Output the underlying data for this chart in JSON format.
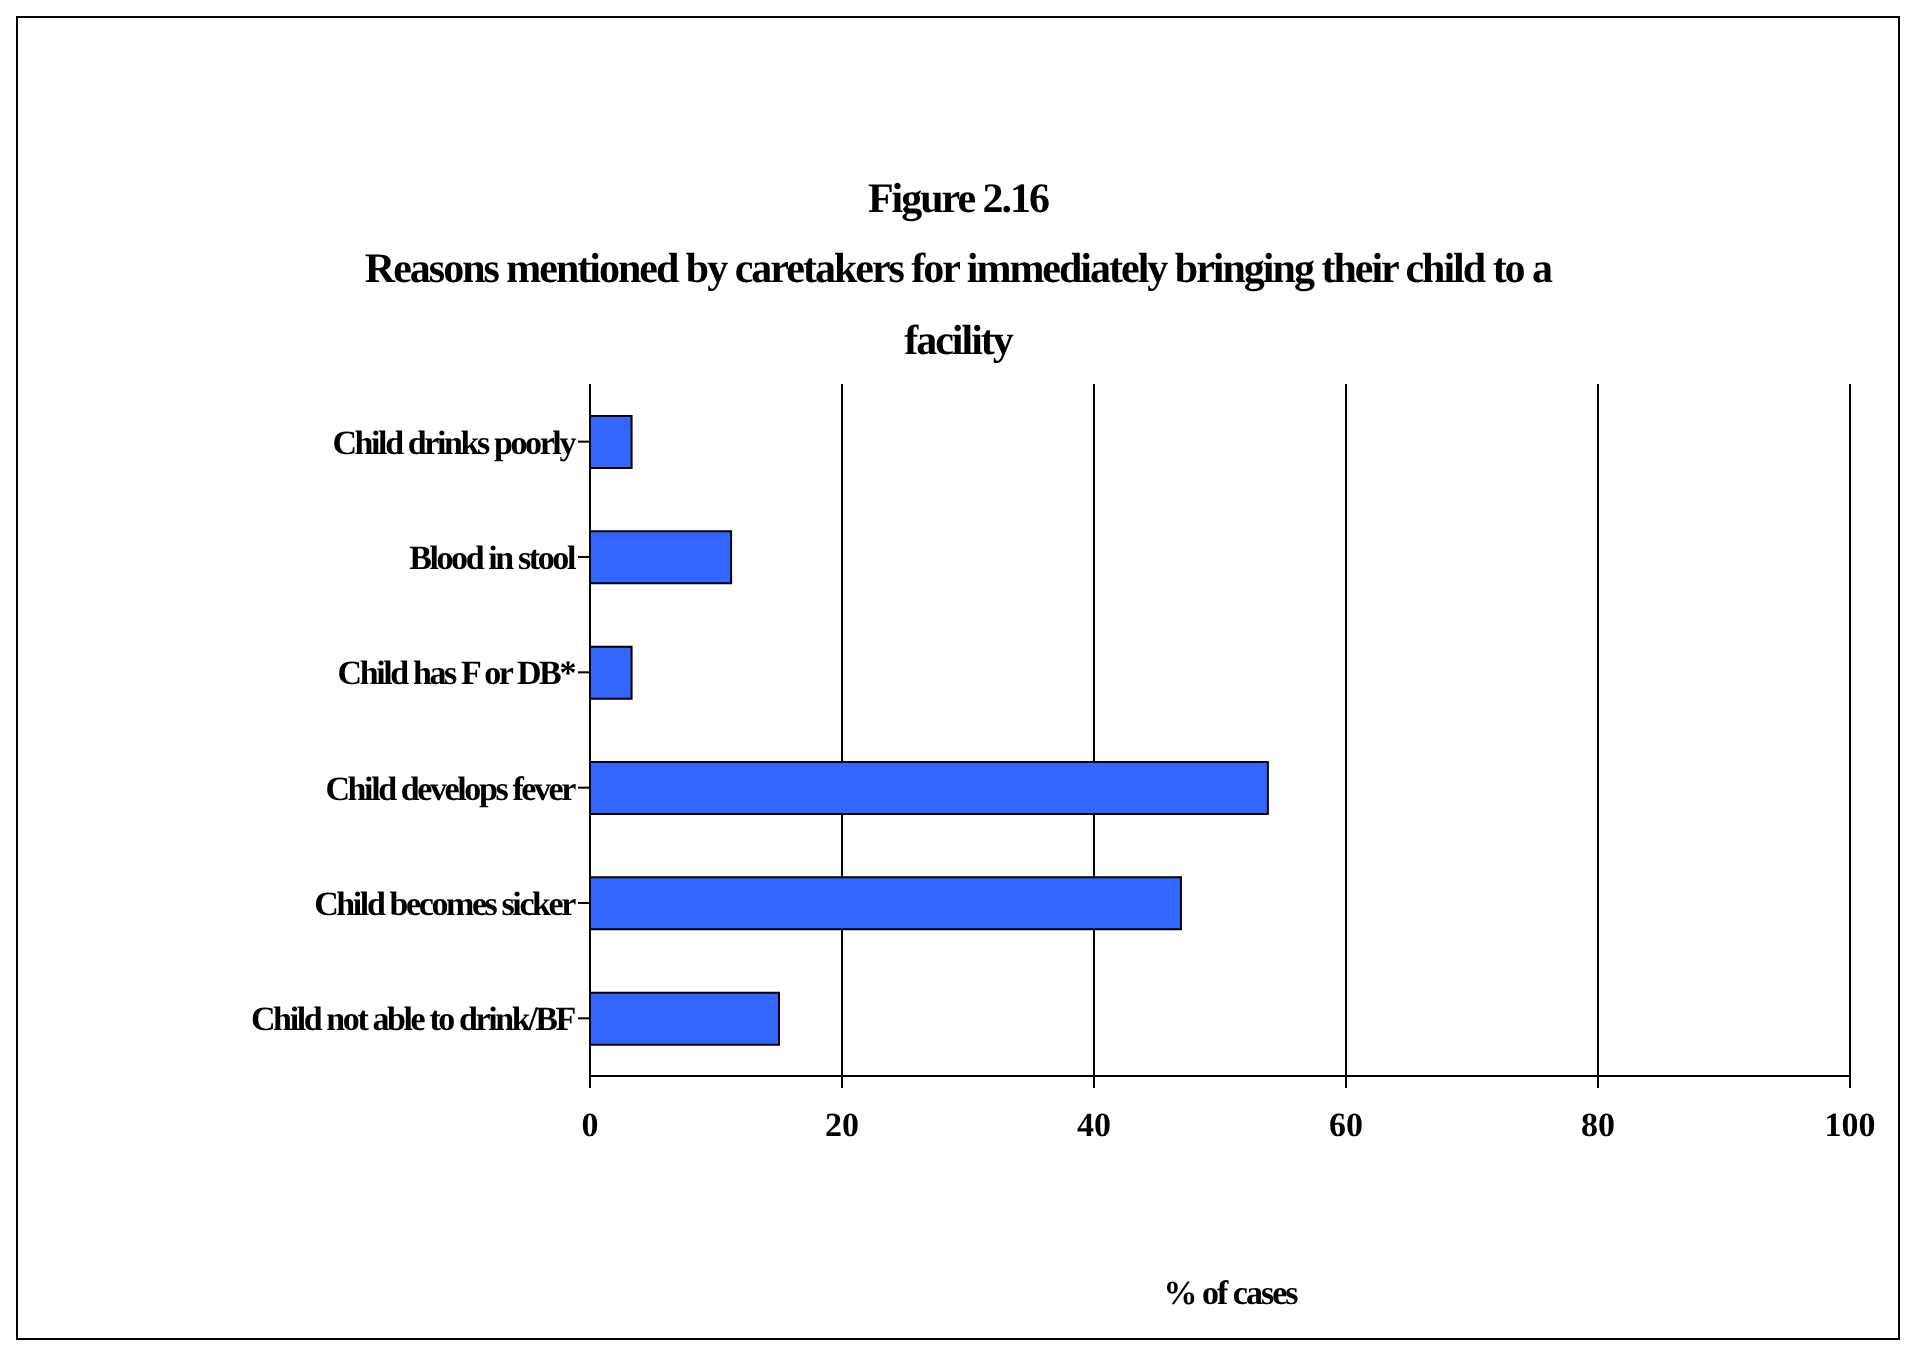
{
  "chart_data": {
    "type": "bar",
    "orientation": "horizontal",
    "title": "Figure 2.16",
    "subtitle": "Reasons mentioned by caretakers for immediately bringing their child to a facility",
    "xlabel": "% of cases",
    "categories": [
      "Child drinks poorly",
      "Blood in stool",
      "Child has F or DB*",
      "Child develops fever",
      "Child becomes sicker",
      "Child not able to drink/BF"
    ],
    "values": [
      3.3,
      11.2,
      3.3,
      53.8,
      46.9,
      15.0
    ],
    "color": "#3366ff",
    "xlim": [
      0,
      100
    ],
    "xticks": [
      0,
      20,
      40,
      60,
      80,
      100
    ],
    "grid": "x"
  }
}
